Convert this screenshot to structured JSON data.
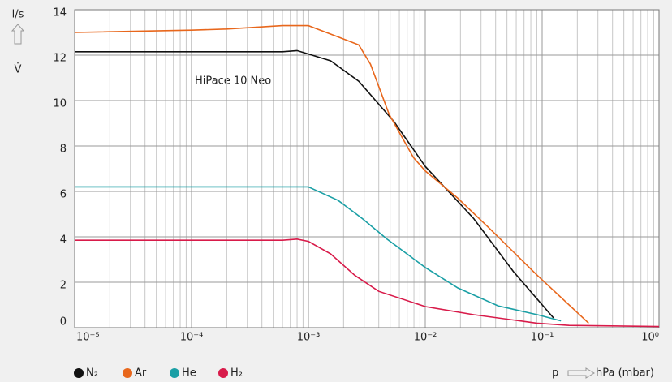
{
  "chart_data": {
    "type": "line",
    "annotation": "HiPace 10 Neo",
    "y_label_top": "l/s",
    "y_label_bottom": "V̇",
    "x_label_left": "p",
    "x_label_right": "hPa (mbar)",
    "log_x": true,
    "grid": true,
    "xlim": [
      1e-05,
      1
    ],
    "ylim": [
      0,
      14
    ],
    "yticks": [
      0,
      2,
      4,
      6,
      8,
      10,
      12,
      14
    ],
    "xticks": [
      {
        "value": 1e-05,
        "label": "10⁻⁵"
      },
      {
        "value": 0.0001,
        "label": "10⁻⁴"
      },
      {
        "value": 0.001,
        "label": "10⁻³"
      },
      {
        "value": 0.01,
        "label": "10⁻²"
      },
      {
        "value": 0.1,
        "label": "10⁻¹"
      },
      {
        "value": 1,
        "label": "10⁰"
      }
    ],
    "xminorticks": [
      2e-05,
      3e-05,
      4e-05,
      5e-05,
      6e-05,
      7e-05,
      8e-05,
      9e-05,
      0.0002,
      0.0003,
      0.0004,
      0.0005,
      0.0006,
      0.0007,
      0.0008,
      0.0009,
      0.002,
      0.003,
      0.004,
      0.005,
      0.006,
      0.007,
      0.008,
      0.009,
      0.02,
      0.03,
      0.04,
      0.05,
      0.06,
      0.07,
      0.08,
      0.09,
      0.2,
      0.3,
      0.4,
      0.5,
      0.6,
      0.7,
      0.8,
      0.9
    ],
    "series": [
      {
        "name": "N₂",
        "color": "#111111",
        "x": [
          1e-05,
          0.0006,
          0.0008,
          0.001,
          0.00155,
          0.0027,
          0.0054,
          0.01,
          0.026,
          0.057,
          0.125
        ],
        "values": [
          12.15,
          12.15,
          12.2,
          12.05,
          11.75,
          10.85,
          9.07,
          7.1,
          4.8,
          2.46,
          0.43
        ]
      },
      {
        "name": "Ar",
        "color": "#e8671c",
        "x": [
          1e-05,
          0.0001,
          0.0002,
          0.0006,
          0.001,
          0.0018,
          0.0027,
          0.0034,
          0.0049,
          0.0079,
          0.01,
          0.019,
          0.035,
          0.091,
          0.25
        ],
        "values": [
          13.0,
          13.1,
          13.15,
          13.3,
          13.3,
          12.8,
          12.45,
          11.6,
          9.4,
          7.5,
          6.9,
          5.7,
          4.4,
          2.3,
          0.2
        ]
      },
      {
        "name": "He",
        "color": "#1a9fa5",
        "x": [
          1e-05,
          0.001,
          0.0011,
          0.0018,
          0.0029,
          0.0047,
          0.01,
          0.019,
          0.042,
          0.091,
          0.145
        ],
        "values": [
          6.2,
          6.2,
          6.1,
          5.6,
          4.8,
          3.9,
          2.65,
          1.75,
          0.96,
          0.57,
          0.3
        ]
      },
      {
        "name": "H₂",
        "color": "#d81b4a",
        "x": [
          1e-05,
          0.0006,
          0.0008,
          0.001,
          0.00155,
          0.0025,
          0.004,
          0.01,
          0.026,
          0.09,
          0.17,
          1
        ],
        "values": [
          3.85,
          3.85,
          3.9,
          3.8,
          3.25,
          2.3,
          1.6,
          0.93,
          0.57,
          0.2,
          0.1,
          0.05
        ]
      }
    ]
  }
}
